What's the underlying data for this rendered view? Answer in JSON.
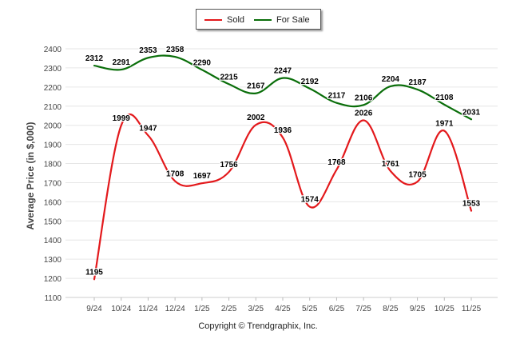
{
  "legend": {
    "sold_label": "Sold",
    "forsale_label": "For Sale"
  },
  "footer": {
    "copyright": "Copyright © Trendgraphix, Inc."
  },
  "colors": {
    "sold": "#e3191c",
    "for_sale": "#0a6e0a",
    "grid": "#e6e6e6",
    "axis_text": "#444444"
  },
  "chart_data": {
    "type": "line",
    "title": "",
    "xlabel": "",
    "ylabel": "Average Price (in $,000)",
    "ylim": [
      1100,
      2400
    ],
    "yticks": [
      1100,
      1200,
      1300,
      1400,
      1500,
      1600,
      1700,
      1800,
      1900,
      2000,
      2100,
      2200,
      2300,
      2400
    ],
    "grid": true,
    "legend_position": "top-center",
    "categories": [
      "9/24",
      "10/24",
      "11/24",
      "12/24",
      "1/25",
      "2/25",
      "3/25",
      "4/25",
      "5/25",
      "6/25",
      "7/25",
      "8/25",
      "9/25",
      "10/25",
      "11/25"
    ],
    "series": [
      {
        "name": "Sold",
        "color": "#e3191c",
        "values": [
          1195,
          1999,
          1947,
          1708,
          1697,
          1756,
          2002,
          1936,
          1574,
          1768,
          2026,
          1761,
          1705,
          1971,
          1553
        ]
      },
      {
        "name": "For Sale",
        "color": "#0a6e0a",
        "values": [
          2312,
          2291,
          2353,
          2358,
          2290,
          2215,
          2167,
          2247,
          2192,
          2117,
          2106,
          2204,
          2187,
          2108,
          2031
        ]
      }
    ]
  }
}
